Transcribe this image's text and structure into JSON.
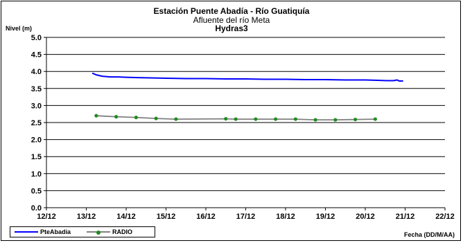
{
  "chart_data": {
    "type": "line",
    "title": "Estación Puente Abadía  - Río Guatiquía",
    "subtitle": "Afluente del río Meta",
    "subtitle2": "Hydras3",
    "ylabel": "Nivel (m)",
    "xlabel": "Fecha (DD/M/AA)",
    "ylim": [
      0,
      5
    ],
    "yticks": [
      "0.0",
      "0.5",
      "1.0",
      "1.5",
      "2.0",
      "2.5",
      "3.0",
      "3.5",
      "4.0",
      "4.5",
      "5.0"
    ],
    "xlim": [
      12,
      22
    ],
    "xticks": [
      "12/12",
      "13/12",
      "14/12",
      "15/12",
      "16/12",
      "17/12",
      "18/12",
      "19/12",
      "20/12",
      "21/12",
      "22/12"
    ],
    "grid": "horizontal",
    "legend": "bottom-left",
    "series": [
      {
        "name": "PteAbadia",
        "color": "#0000ff",
        "x": [
          13.15,
          13.25,
          13.4,
          13.6,
          13.8,
          14.0,
          14.3,
          14.6,
          15.0,
          15.5,
          16.0,
          16.5,
          17.0,
          17.5,
          18.0,
          18.5,
          19.0,
          19.5,
          20.0,
          20.3,
          20.55,
          20.7,
          20.8,
          20.85,
          20.9,
          20.95
        ],
        "y": [
          3.95,
          3.9,
          3.86,
          3.84,
          3.84,
          3.83,
          3.82,
          3.81,
          3.8,
          3.79,
          3.79,
          3.78,
          3.78,
          3.77,
          3.77,
          3.76,
          3.76,
          3.75,
          3.75,
          3.74,
          3.73,
          3.73,
          3.75,
          3.72,
          3.72,
          3.72
        ]
      },
      {
        "name": "RADIO",
        "color": "#808080",
        "marker_color": "#1e8c1e",
        "x": [
          13.25,
          13.75,
          14.25,
          14.75,
          15.25,
          16.5,
          16.75,
          17.25,
          17.75,
          18.25,
          18.75,
          19.25,
          19.75,
          20.25
        ],
        "y": [
          2.7,
          2.67,
          2.65,
          2.62,
          2.6,
          2.61,
          2.6,
          2.6,
          2.6,
          2.6,
          2.58,
          2.58,
          2.59,
          2.6
        ]
      }
    ]
  }
}
